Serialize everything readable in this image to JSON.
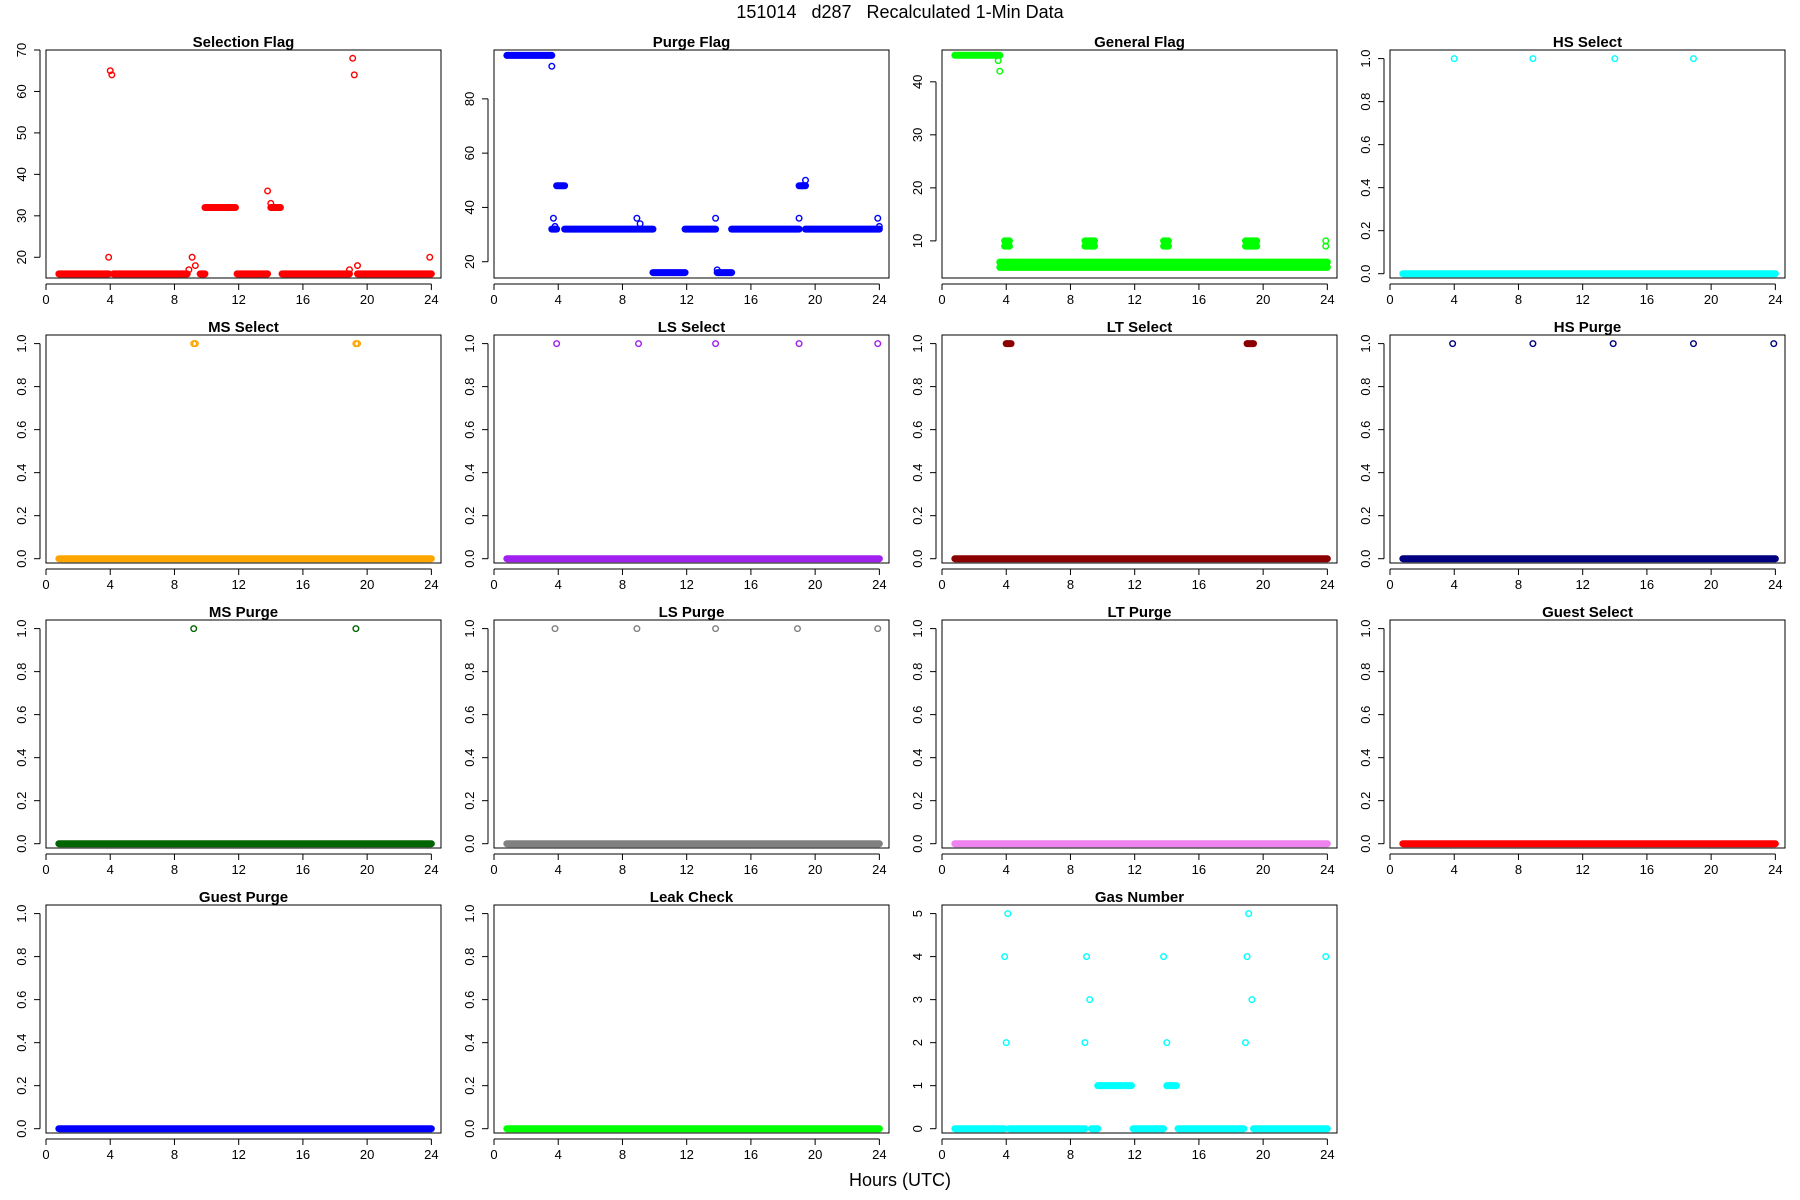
{
  "title": "151014   d287   Recalculated 1-Min Data",
  "xlabel": "Hours (UTC)",
  "chart_data": [
    {
      "type": "scatter",
      "title": "Selection Flag",
      "color": "#ff0000",
      "xlim": [
        0,
        24.6
      ],
      "ylim": [
        15,
        70
      ],
      "xticks": [
        0,
        4,
        8,
        12,
        16,
        20,
        24
      ],
      "yticks": [
        20,
        30,
        40,
        50,
        60,
        70
      ],
      "ytick_labels": [
        "20",
        "30",
        "40",
        "50",
        "60",
        "70"
      ],
      "segments": [
        {
          "x0": 0.8,
          "x1": 3.9,
          "y": 16
        },
        {
          "x0": 4.2,
          "x1": 8.8,
          "y": 16
        },
        {
          "x0": 9.6,
          "x1": 9.9,
          "y": 16
        },
        {
          "x0": 9.9,
          "x1": 11.8,
          "y": 32
        },
        {
          "x0": 11.9,
          "x1": 13.8,
          "y": 16
        },
        {
          "x0": 14.0,
          "x1": 14.6,
          "y": 32
        },
        {
          "x0": 14.7,
          "x1": 18.9,
          "y": 16
        },
        {
          "x0": 19.4,
          "x1": 24.0,
          "y": 16
        }
      ],
      "points": [
        [
          3.9,
          20
        ],
        [
          4.0,
          65
        ],
        [
          4.1,
          64
        ],
        [
          8.9,
          17
        ],
        [
          9.1,
          20
        ],
        [
          9.3,
          18
        ],
        [
          13.8,
          36
        ],
        [
          14.0,
          33
        ],
        [
          18.9,
          17
        ],
        [
          19.1,
          68
        ],
        [
          19.2,
          64
        ],
        [
          19.4,
          18
        ],
        [
          23.9,
          20
        ]
      ]
    },
    {
      "type": "scatter",
      "title": "Purge Flag",
      "color": "#0000ff",
      "xlim": [
        0,
        24.6
      ],
      "ylim": [
        14,
        98
      ],
      "xticks": [
        0,
        4,
        8,
        12,
        16,
        20,
        24
      ],
      "yticks": [
        20,
        40,
        60,
        80
      ],
      "ytick_labels": [
        "20",
        "40",
        "60",
        "80"
      ],
      "segments": [
        {
          "x0": 0.8,
          "x1": 3.6,
          "y": 96
        },
        {
          "x0": 3.6,
          "x1": 3.9,
          "y": 32
        },
        {
          "x0": 3.9,
          "x1": 4.4,
          "y": 48
        },
        {
          "x0": 4.4,
          "x1": 9.9,
          "y": 32
        },
        {
          "x0": 9.9,
          "x1": 11.9,
          "y": 16
        },
        {
          "x0": 11.9,
          "x1": 13.8,
          "y": 32
        },
        {
          "x0": 13.9,
          "x1": 14.8,
          "y": 16
        },
        {
          "x0": 14.8,
          "x1": 19.0,
          "y": 32
        },
        {
          "x0": 19.0,
          "x1": 19.4,
          "y": 48
        },
        {
          "x0": 19.4,
          "x1": 24.0,
          "y": 32
        }
      ],
      "points": [
        [
          3.6,
          92
        ],
        [
          3.7,
          36
        ],
        [
          3.8,
          33
        ],
        [
          8.9,
          36
        ],
        [
          9.1,
          34
        ],
        [
          13.8,
          36
        ],
        [
          13.9,
          17
        ],
        [
          19.0,
          36
        ],
        [
          19.2,
          48
        ],
        [
          19.4,
          50
        ],
        [
          23.9,
          36
        ],
        [
          24.0,
          33
        ]
      ]
    },
    {
      "type": "scatter",
      "title": "General Flag",
      "color": "#00ff00",
      "xlim": [
        0,
        24.6
      ],
      "ylim": [
        3,
        46
      ],
      "xticks": [
        0,
        4,
        8,
        12,
        16,
        20,
        24
      ],
      "yticks": [
        10,
        20,
        30,
        40
      ],
      "ytick_labels": [
        "10",
        "20",
        "30",
        "40"
      ],
      "segments": [
        {
          "x0": 0.8,
          "x1": 3.6,
          "y": 45
        },
        {
          "x0": 3.6,
          "x1": 24.0,
          "y": 5
        },
        {
          "x0": 3.6,
          "x1": 24.0,
          "y": 6
        },
        {
          "x0": 3.9,
          "x1": 4.2,
          "y": 9
        },
        {
          "x0": 3.9,
          "x1": 4.2,
          "y": 10
        },
        {
          "x0": 8.9,
          "x1": 9.5,
          "y": 9
        },
        {
          "x0": 8.9,
          "x1": 9.5,
          "y": 10
        },
        {
          "x0": 13.8,
          "x1": 14.1,
          "y": 9
        },
        {
          "x0": 13.8,
          "x1": 14.1,
          "y": 10
        },
        {
          "x0": 18.9,
          "x1": 19.6,
          "y": 9
        },
        {
          "x0": 18.9,
          "x1": 19.6,
          "y": 10
        }
      ],
      "points": [
        [
          3.5,
          44
        ],
        [
          3.6,
          42
        ],
        [
          23.9,
          9
        ],
        [
          23.9,
          10
        ]
      ]
    },
    {
      "type": "scatter",
      "title": "HS Select",
      "color": "#00ffff",
      "xlim": [
        0,
        24.6
      ],
      "ylim": [
        -0.02,
        1.04
      ],
      "xticks": [
        0,
        4,
        8,
        12,
        16,
        20,
        24
      ],
      "yticks": [
        0,
        0.2,
        0.4,
        0.6,
        0.8,
        1.0
      ],
      "ytick_labels": [
        "0.0",
        "0.2",
        "0.4",
        "0.6",
        "0.8",
        "1.0"
      ],
      "segments": [
        {
          "x0": 0.8,
          "x1": 24.0,
          "y": 0
        }
      ],
      "points": [
        [
          4.0,
          1
        ],
        [
          8.9,
          1
        ],
        [
          14.0,
          1
        ],
        [
          18.9,
          1
        ]
      ]
    },
    {
      "type": "scatter",
      "title": "MS Select",
      "color": "#ffa500",
      "xlim": [
        0,
        24.6
      ],
      "ylim": [
        -0.02,
        1.04
      ],
      "xticks": [
        0,
        4,
        8,
        12,
        16,
        20,
        24
      ],
      "yticks": [
        0,
        0.2,
        0.4,
        0.6,
        0.8,
        1.0
      ],
      "ytick_labels": [
        "0.0",
        "0.2",
        "0.4",
        "0.6",
        "0.8",
        "1.0"
      ],
      "segments": [
        {
          "x0": 0.8,
          "x1": 24.0,
          "y": 0
        }
      ],
      "points": [
        [
          9.2,
          1
        ],
        [
          9.3,
          1
        ],
        [
          19.3,
          1
        ],
        [
          19.4,
          1
        ]
      ]
    },
    {
      "type": "scatter",
      "title": "LS Select",
      "color": "#a020f0",
      "xlim": [
        0,
        24.6
      ],
      "ylim": [
        -0.02,
        1.04
      ],
      "xticks": [
        0,
        4,
        8,
        12,
        16,
        20,
        24
      ],
      "yticks": [
        0,
        0.2,
        0.4,
        0.6,
        0.8,
        1.0
      ],
      "ytick_labels": [
        "0.0",
        "0.2",
        "0.4",
        "0.6",
        "0.8",
        "1.0"
      ],
      "segments": [
        {
          "x0": 0.8,
          "x1": 24.0,
          "y": 0
        }
      ],
      "points": [
        [
          3.9,
          1
        ],
        [
          9.0,
          1
        ],
        [
          13.8,
          1
        ],
        [
          19.0,
          1
        ],
        [
          23.9,
          1
        ]
      ]
    },
    {
      "type": "scatter",
      "title": "LT Select",
      "color": "#8b0000",
      "xlim": [
        0,
        24.6
      ],
      "ylim": [
        -0.02,
        1.04
      ],
      "xticks": [
        0,
        4,
        8,
        12,
        16,
        20,
        24
      ],
      "yticks": [
        0,
        0.2,
        0.4,
        0.6,
        0.8,
        1.0
      ],
      "ytick_labels": [
        "0.0",
        "0.2",
        "0.4",
        "0.6",
        "0.8",
        "1.0"
      ],
      "segments": [
        {
          "x0": 0.8,
          "x1": 24.0,
          "y": 0
        },
        {
          "x0": 4.0,
          "x1": 4.3,
          "y": 1
        },
        {
          "x0": 19.0,
          "x1": 19.4,
          "y": 1
        }
      ],
      "points": []
    },
    {
      "type": "scatter",
      "title": "HS Purge",
      "color": "#000080",
      "xlim": [
        0,
        24.6
      ],
      "ylim": [
        -0.02,
        1.04
      ],
      "xticks": [
        0,
        4,
        8,
        12,
        16,
        20,
        24
      ],
      "yticks": [
        0,
        0.2,
        0.4,
        0.6,
        0.8,
        1.0
      ],
      "ytick_labels": [
        "0.0",
        "0.2",
        "0.4",
        "0.6",
        "0.8",
        "1.0"
      ],
      "segments": [
        {
          "x0": 0.8,
          "x1": 24.0,
          "y": 0
        }
      ],
      "points": [
        [
          3.9,
          1
        ],
        [
          8.9,
          1
        ],
        [
          13.9,
          1
        ],
        [
          18.9,
          1
        ],
        [
          23.9,
          1
        ]
      ]
    },
    {
      "type": "scatter",
      "title": "MS Purge",
      "color": "#006400",
      "xlim": [
        0,
        24.6
      ],
      "ylim": [
        -0.02,
        1.04
      ],
      "xticks": [
        0,
        4,
        8,
        12,
        16,
        20,
        24
      ],
      "yticks": [
        0,
        0.2,
        0.4,
        0.6,
        0.8,
        1.0
      ],
      "ytick_labels": [
        "0.0",
        "0.2",
        "0.4",
        "0.6",
        "0.8",
        "1.0"
      ],
      "segments": [
        {
          "x0": 0.8,
          "x1": 24.0,
          "y": 0
        }
      ],
      "points": [
        [
          9.2,
          1
        ],
        [
          19.3,
          1
        ]
      ]
    },
    {
      "type": "scatter",
      "title": "LS Purge",
      "color": "#808080",
      "xlim": [
        0,
        24.6
      ],
      "ylim": [
        -0.02,
        1.04
      ],
      "xticks": [
        0,
        4,
        8,
        12,
        16,
        20,
        24
      ],
      "yticks": [
        0,
        0.2,
        0.4,
        0.6,
        0.8,
        1.0
      ],
      "ytick_labels": [
        "0.0",
        "0.2",
        "0.4",
        "0.6",
        "0.8",
        "1.0"
      ],
      "segments": [
        {
          "x0": 0.8,
          "x1": 24.0,
          "y": 0
        }
      ],
      "points": [
        [
          3.8,
          1
        ],
        [
          8.9,
          1
        ],
        [
          13.8,
          1
        ],
        [
          18.9,
          1
        ],
        [
          23.9,
          1
        ]
      ]
    },
    {
      "type": "scatter",
      "title": "LT Purge",
      "color": "#ee82ee",
      "xlim": [
        0,
        24.6
      ],
      "ylim": [
        -0.02,
        1.04
      ],
      "xticks": [
        0,
        4,
        8,
        12,
        16,
        20,
        24
      ],
      "yticks": [
        0,
        0.2,
        0.4,
        0.6,
        0.8,
        1.0
      ],
      "ytick_labels": [
        "0.0",
        "0.2",
        "0.4",
        "0.6",
        "0.8",
        "1.0"
      ],
      "segments": [
        {
          "x0": 0.8,
          "x1": 24.0,
          "y": 0
        }
      ],
      "points": []
    },
    {
      "type": "scatter",
      "title": "Guest Select",
      "color": "#ff0000",
      "xlim": [
        0,
        24.6
      ],
      "ylim": [
        -0.02,
        1.04
      ],
      "xticks": [
        0,
        4,
        8,
        12,
        16,
        20,
        24
      ],
      "yticks": [
        0,
        0.2,
        0.4,
        0.6,
        0.8,
        1.0
      ],
      "ytick_labels": [
        "0.0",
        "0.2",
        "0.4",
        "0.6",
        "0.8",
        "1.0"
      ],
      "segments": [
        {
          "x0": 0.8,
          "x1": 24.0,
          "y": 0
        }
      ],
      "points": []
    },
    {
      "type": "scatter",
      "title": "Guest Purge",
      "color": "#0000ff",
      "xlim": [
        0,
        24.6
      ],
      "ylim": [
        -0.02,
        1.04
      ],
      "xticks": [
        0,
        4,
        8,
        12,
        16,
        20,
        24
      ],
      "yticks": [
        0,
        0.2,
        0.4,
        0.6,
        0.8,
        1.0
      ],
      "ytick_labels": [
        "0.0",
        "0.2",
        "0.4",
        "0.6",
        "0.8",
        "1.0"
      ],
      "segments": [
        {
          "x0": 0.8,
          "x1": 24.0,
          "y": 0
        }
      ],
      "points": []
    },
    {
      "type": "scatter",
      "title": "Leak Check",
      "color": "#00ff00",
      "xlim": [
        0,
        24.6
      ],
      "ylim": [
        -0.02,
        1.04
      ],
      "xticks": [
        0,
        4,
        8,
        12,
        16,
        20,
        24
      ],
      "yticks": [
        0,
        0.2,
        0.4,
        0.6,
        0.8,
        1.0
      ],
      "ytick_labels": [
        "0.0",
        "0.2",
        "0.4",
        "0.6",
        "0.8",
        "1.0"
      ],
      "segments": [
        {
          "x0": 0.8,
          "x1": 24.0,
          "y": 0
        }
      ],
      "points": []
    },
    {
      "type": "scatter",
      "title": "Gas Number",
      "color": "#00ffff",
      "xlim": [
        0,
        24.6
      ],
      "ylim": [
        -0.1,
        5.2
      ],
      "xticks": [
        0,
        4,
        8,
        12,
        16,
        20,
        24
      ],
      "yticks": [
        0,
        1,
        2,
        3,
        4,
        5
      ],
      "ytick_labels": [
        "0",
        "1",
        "2",
        "3",
        "4",
        "5"
      ],
      "segments": [
        {
          "x0": 0.8,
          "x1": 3.9,
          "y": 0
        },
        {
          "x0": 4.2,
          "x1": 8.9,
          "y": 0
        },
        {
          "x0": 9.3,
          "x1": 9.7,
          "y": 0
        },
        {
          "x0": 9.7,
          "x1": 11.8,
          "y": 1
        },
        {
          "x0": 11.9,
          "x1": 13.8,
          "y": 0
        },
        {
          "x0": 14.0,
          "x1": 14.6,
          "y": 1
        },
        {
          "x0": 14.7,
          "x1": 18.8,
          "y": 0
        },
        {
          "x0": 19.4,
          "x1": 24.0,
          "y": 0
        }
      ],
      "points": [
        [
          3.9,
          4
        ],
        [
          4.0,
          2
        ],
        [
          4.1,
          5
        ],
        [
          8.9,
          2
        ],
        [
          9.0,
          4
        ],
        [
          9.2,
          3
        ],
        [
          13.8,
          4
        ],
        [
          14.0,
          2
        ],
        [
          18.9,
          2
        ],
        [
          19.0,
          4
        ],
        [
          19.1,
          5
        ],
        [
          19.3,
          3
        ],
        [
          23.9,
          4
        ]
      ]
    }
  ]
}
